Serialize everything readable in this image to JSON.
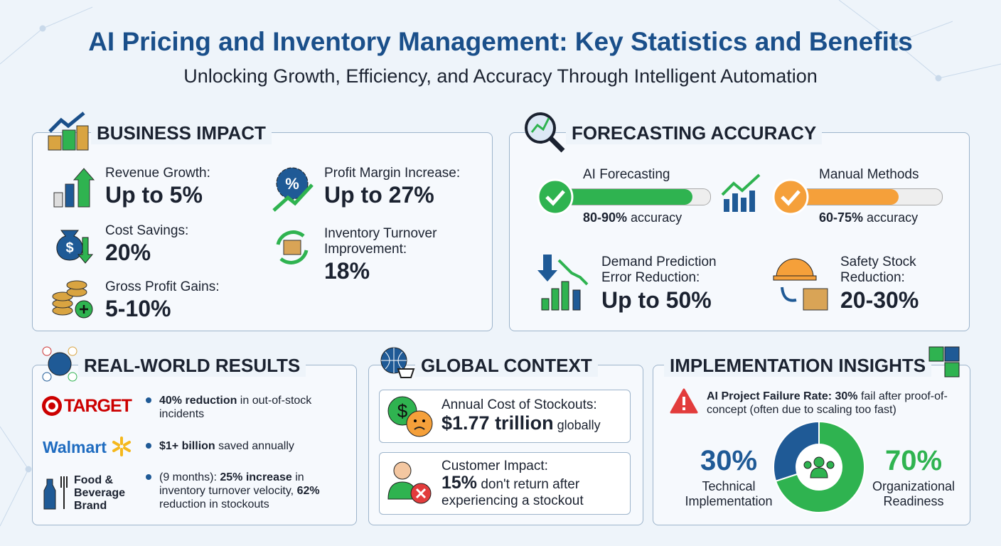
{
  "header": {
    "title": "AI Pricing and Inventory Management: Key Statistics and Benefits",
    "subtitle": "Unlocking Growth, Efficiency, and Accuracy Through Intelligent Automation"
  },
  "business_impact": {
    "title": "BUSINESS IMPACT",
    "items": [
      {
        "label": "Revenue Growth:",
        "value": "Up to 5%"
      },
      {
        "label": "Cost Savings:",
        "value": "20%"
      },
      {
        "label": "Gross Profit Gains:",
        "value": "5-10%"
      },
      {
        "label": "Profit Margin Increase:",
        "value": "Up to 27%"
      },
      {
        "label": "Inventory Turnover Improvement:",
        "value": "18%"
      }
    ]
  },
  "forecasting": {
    "title": "FORECASTING ACCURACY",
    "methods": [
      {
        "name": "AI Forecasting",
        "range": "80-90%",
        "suffix": " accuracy"
      },
      {
        "name": "Manual Methods",
        "range": "60-75%",
        "suffix": " accuracy"
      }
    ],
    "stats": [
      {
        "label": "Demand Prediction Error Reduction:",
        "value": "Up to 50%"
      },
      {
        "label": "Safety Stock Reduction:",
        "value": "20-30%"
      }
    ]
  },
  "real_world": {
    "title": "REAL-WORLD RESULTS",
    "items": [
      {
        "brand": "TARGET",
        "segments": [
          {
            "text": "40% reduction",
            "bold": true
          },
          {
            "text": " in out-of-stock incidents",
            "bold": false
          }
        ]
      },
      {
        "brand": "Walmart",
        "segments": [
          {
            "text": "$1+ billion",
            "bold": true
          },
          {
            "text": " saved annually",
            "bold": false
          }
        ]
      },
      {
        "brand": "Food & Beverage Brand",
        "segments": [
          {
            "text": "(9 months): ",
            "bold": false
          },
          {
            "text": "25% increase",
            "bold": true
          },
          {
            "text": " in inventory turnover velocity, ",
            "bold": false
          },
          {
            "text": "62%",
            "bold": true
          },
          {
            "text": " reduction in stockouts",
            "bold": false
          }
        ]
      }
    ]
  },
  "global_context": {
    "title": "GLOBAL CONTEXT",
    "cards": [
      {
        "label": "Annual Cost of Stockouts:",
        "value": "$1.77 trillion",
        "suffix": " globally"
      },
      {
        "label": "Customer Impact:",
        "value": "15%",
        "suffix": " don't return after experiencing a stockout"
      }
    ]
  },
  "implementation": {
    "title": "IMPLEMENTATION INSIGHTS",
    "warning_bold": "AI Project Failure Rate: 30%",
    "warning_text": " fail after proof-of-concept (often due to scaling too fast)",
    "donut": [
      {
        "value": 30,
        "label": "30%",
        "name": "Technical Implementation",
        "color": "#1f5a96"
      },
      {
        "value": 70,
        "label": "70%",
        "name": "Organizational Readiness",
        "color": "#2fb350"
      }
    ]
  }
}
